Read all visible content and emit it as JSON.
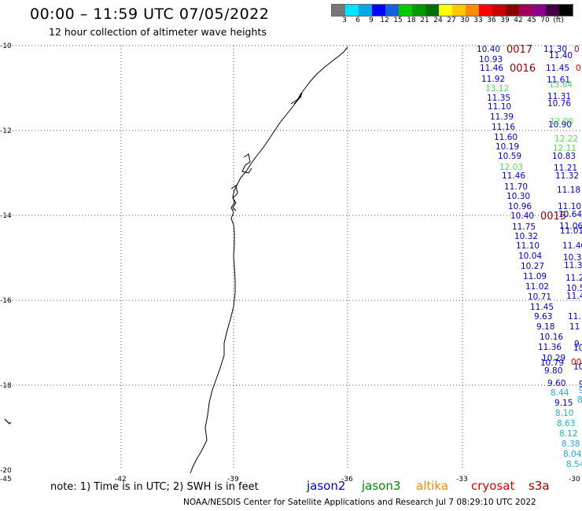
{
  "title": "00:00 – 11:59 UTC 07/05/2022",
  "subtitle": "12 hour collection of altimeter wave heights",
  "colorbar": {
    "colors": [
      "#777777",
      "#00e5ff",
      "#00a8e8",
      "#0000ff",
      "#1560e0",
      "#00cc00",
      "#009900",
      "#007000",
      "#ffff00",
      "#ffc800",
      "#ff8c00",
      "#ff0000",
      "#cc0000",
      "#8b0000",
      "#a3005a",
      "#880088",
      "#440044",
      "#000000"
    ],
    "labels": [
      "3",
      "6",
      "9",
      "12",
      "15",
      "18",
      "21",
      "24",
      "27",
      "30",
      "33",
      "36",
      "39",
      "42",
      "45",
      "70",
      "(ft)"
    ]
  },
  "axes": {
    "lon_labels": [
      "-45",
      "-42",
      "-39",
      "-36",
      "-33",
      "-30"
    ],
    "lat_labels": [
      "-10",
      "-12",
      "-14",
      "-16",
      "-18",
      "-20"
    ]
  },
  "points": [
    {
      "t": "10.40",
      "c": "#0000cc"
    },
    {
      "t": "0017",
      "c": "#8b0000"
    },
    {
      "t": "11.30",
      "c": "#0000cc"
    },
    {
      "t": "0",
      "c": "#cc0000"
    },
    {
      "t": "11.40",
      "c": "#0000cc"
    },
    {
      "t": "10.93",
      "c": "#0000cc"
    },
    {
      "t": "11.46",
      "c": "#0000cc"
    },
    {
      "t": "0016",
      "c": "#8b0000"
    },
    {
      "t": "11.45",
      "c": "#0000cc"
    },
    {
      "t": "0",
      "c": "#cc0000"
    },
    {
      "t": "11.92",
      "c": "#0000cc"
    },
    {
      "t": "11.61",
      "c": "#0000cc"
    },
    {
      "t": "13.12",
      "c": "#55dd55"
    },
    {
      "t": "13.64",
      "c": "#55dd55"
    },
    {
      "t": "11.35",
      "c": "#0000cc"
    },
    {
      "t": "11.31",
      "c": "#0000cc"
    },
    {
      "t": "11.10",
      "c": "#0000cc"
    },
    {
      "t": "10.76",
      "c": "#0000cc"
    },
    {
      "t": "11.39",
      "c": "#0000cc"
    },
    {
      "t": "11.16",
      "c": "#0000cc"
    },
    {
      "t": "10.90",
      "c": "#0000cc"
    },
    {
      "t": "12.00",
      "c": "#55dd55"
    },
    {
      "t": "11.60",
      "c": "#0000cc"
    },
    {
      "t": "12.22",
      "c": "#55dd55"
    },
    {
      "t": "10.19",
      "c": "#0000cc"
    },
    {
      "t": "12.11",
      "c": "#55dd55"
    },
    {
      "t": "10.59",
      "c": "#0000cc"
    },
    {
      "t": "10.83",
      "c": "#0000cc"
    },
    {
      "t": "12.03",
      "c": "#55dd55"
    },
    {
      "t": "11.21",
      "c": "#0000cc"
    },
    {
      "t": "11.46",
      "c": "#0000cc"
    },
    {
      "t": "11.32",
      "c": "#0000cc"
    },
    {
      "t": "11.70",
      "c": "#0000cc"
    },
    {
      "t": "11.18",
      "c": "#0000cc"
    },
    {
      "t": "10.30",
      "c": "#0000cc"
    },
    {
      "t": "10.96",
      "c": "#0000cc"
    },
    {
      "t": "11.10",
      "c": "#0000cc"
    },
    {
      "t": "10.40",
      "c": "#0000cc"
    },
    {
      "t": "0015",
      "c": "#8b0000"
    },
    {
      "t": "10.64",
      "c": "#0000cc"
    },
    {
      "t": "11.75",
      "c": "#0000cc"
    },
    {
      "t": "11.06",
      "c": "#0000cc"
    },
    {
      "t": "11.01",
      "c": "#0000cc"
    },
    {
      "t": "10.32",
      "c": "#0000cc"
    },
    {
      "t": "11.10",
      "c": "#0000cc"
    },
    {
      "t": "11.40",
      "c": "#0000cc"
    },
    {
      "t": "10.04",
      "c": "#0000cc"
    },
    {
      "t": "10.39",
      "c": "#0000cc"
    },
    {
      "t": "10.27",
      "c": "#0000cc"
    },
    {
      "t": "11.3",
      "c": "#0000cc"
    },
    {
      "t": "11.09",
      "c": "#0000cc"
    },
    {
      "t": "11.2",
      "c": "#0000cc"
    },
    {
      "t": "11.02",
      "c": "#0000cc"
    },
    {
      "t": "10.5",
      "c": "#0000cc"
    },
    {
      "t": "10.71",
      "c": "#0000cc"
    },
    {
      "t": "11.4",
      "c": "#0000cc"
    },
    {
      "t": "11.45",
      "c": "#0000cc"
    },
    {
      "t": "9.63",
      "c": "#0000cc"
    },
    {
      "t": "11.",
      "c": "#0000cc"
    },
    {
      "t": "9.18",
      "c": "#0000cc"
    },
    {
      "t": "11",
      "c": "#0000cc"
    },
    {
      "t": "10.16",
      "c": "#0000cc"
    },
    {
      "t": "11.36",
      "c": "#0000cc"
    },
    {
      "t": "9",
      "c": "#0000cc"
    },
    {
      "t": "10",
      "c": "#0000cc"
    },
    {
      "t": "10.29",
      "c": "#0000cc"
    },
    {
      "t": "10.79",
      "c": "#0000cc"
    },
    {
      "t": "00",
      "c": "#cc0000"
    },
    {
      "t": "10",
      "c": "#0000cc"
    },
    {
      "t": "9.80",
      "c": "#0000cc"
    },
    {
      "t": "9.60",
      "c": "#0000cc"
    },
    {
      "t": "9",
      "c": "#0000cc"
    },
    {
      "t": "8.44",
      "c": "#22aadd"
    },
    {
      "t": "9",
      "c": "#22aadd"
    },
    {
      "t": "9.15",
      "c": "#0000cc"
    },
    {
      "t": "8",
      "c": "#22aadd"
    },
    {
      "t": "8.10",
      "c": "#22aadd"
    },
    {
      "t": "8.63",
      "c": "#22aadd"
    },
    {
      "t": "8.12",
      "c": "#22aadd"
    },
    {
      "t": "8.38",
      "c": "#22aadd"
    },
    {
      "t": "8.04",
      "c": "#22aadd"
    },
    {
      "t": "8.54",
      "c": "#22aadd"
    }
  ],
  "note": "note:  1) Time is in UTC;  2) SWH is in feet",
  "satellites": [
    {
      "name": "jason2",
      "color": "#0000dd"
    },
    {
      "name": "jason3",
      "color": "#008800"
    },
    {
      "name": "altika",
      "color": "#ff8800"
    },
    {
      "name": "cryosat",
      "color": "#dd0000"
    },
    {
      "name": "s3a",
      "color": "#990000"
    }
  ],
  "footer": "NOAA/NESDIS Center for Satellite Applications and Research    Jul  7 08:29:10 UTC 2022"
}
